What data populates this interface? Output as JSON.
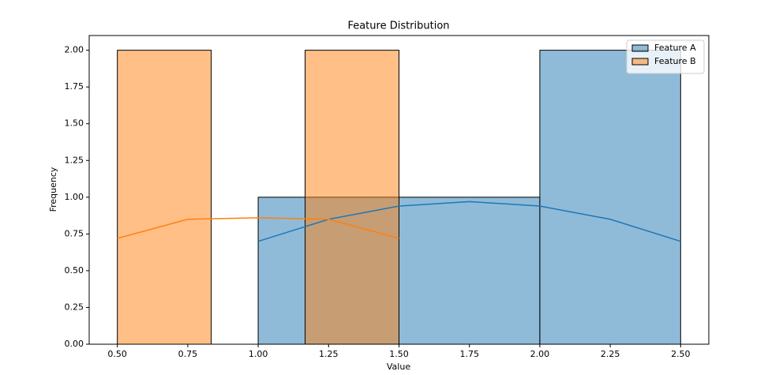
{
  "chart_data": {
    "type": "histogram",
    "title": "Feature Distribution",
    "x_label": "Value",
    "y_label": "Frequency",
    "xlim": [
      0.4,
      2.6
    ],
    "ylim": [
      0,
      2.1
    ],
    "xticks": [
      {
        "value": 0.5,
        "label": "0.50"
      },
      {
        "value": 0.75,
        "label": "0.75"
      },
      {
        "value": 1.0,
        "label": "1.00"
      },
      {
        "value": 1.25,
        "label": "1.25"
      },
      {
        "value": 1.5,
        "label": "1.50"
      },
      {
        "value": 1.75,
        "label": "1.75"
      },
      {
        "value": 2.0,
        "label": "2.00"
      },
      {
        "value": 2.25,
        "label": "2.25"
      },
      {
        "value": 2.5,
        "label": "2.50"
      }
    ],
    "yticks": [
      {
        "value": 0,
        "label": "0.00"
      },
      {
        "value": 0.25,
        "label": "0.25"
      },
      {
        "value": 0.5,
        "label": "0.50"
      },
      {
        "value": 0.75,
        "label": "0.75"
      },
      {
        "value": 1.0,
        "label": "1.00"
      },
      {
        "value": 1.25,
        "label": "1.25"
      },
      {
        "value": 1.5,
        "label": "1.50"
      },
      {
        "value": 1.75,
        "label": "1.75"
      },
      {
        "value": 2.0,
        "label": "2.00"
      }
    ],
    "grid": false,
    "legend_position": "upper-right",
    "series": [
      {
        "name": "Feature A",
        "color": "#1f77b4",
        "bins": [
          1.0,
          1.5,
          2.0,
          2.5
        ],
        "values": [
          1,
          1,
          2
        ],
        "kde": {
          "x": [
            1.0,
            1.25,
            1.5,
            1.75,
            2.0,
            2.25,
            2.5
          ],
          "values": [
            0.7,
            0.85,
            0.94,
            0.97,
            0.94,
            0.85,
            0.7
          ]
        }
      },
      {
        "name": "Feature B",
        "color": "#ff7f0e",
        "bins": [
          0.5,
          0.8333,
          1.1667,
          1.5
        ],
        "values": [
          2,
          0,
          2
        ],
        "kde": {
          "x": [
            0.5,
            0.75,
            1.0,
            1.25,
            1.5
          ],
          "values": [
            0.72,
            0.85,
            0.86,
            0.85,
            0.72
          ]
        }
      }
    ]
  }
}
